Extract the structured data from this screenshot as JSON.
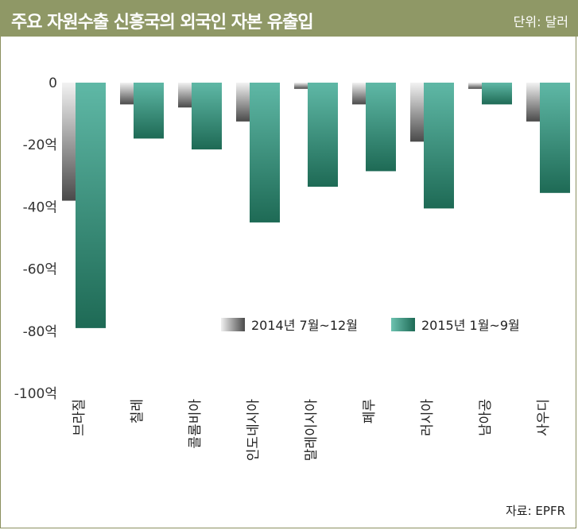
{
  "header": {
    "title": "주요 자원수출 신흥국의 외국인 자본 유출입",
    "unit": "단위: 달러"
  },
  "source": "자료: EPFR",
  "chart_data": {
    "type": "bar",
    "title": "주요 자원수출 신흥국의 외국인 자본 유출입",
    "xlabel": "",
    "ylabel": "",
    "ylim": [
      -100,
      0
    ],
    "yticks": [
      0,
      -20,
      -40,
      -60,
      -80,
      -100
    ],
    "ytick_labels": [
      "0",
      "-20억",
      "-40억",
      "-60억",
      "-80억",
      "-100억"
    ],
    "categories": [
      "브라질",
      "칠레",
      "콜롬비아",
      "인도네시아",
      "말레이시아",
      "페루",
      "러시아",
      "남아공",
      "사우디"
    ],
    "series": [
      {
        "name": "2014년 7월~12월",
        "values": [
          -38,
          -7,
          -8,
          -12.5,
          -2,
          -7,
          -19,
          -2,
          -12.5
        ],
        "color": "#5a5a5a"
      },
      {
        "name": "2015년 1월~9월",
        "values": [
          -79,
          -18,
          -21.5,
          -45,
          -33.5,
          -28.5,
          -40.5,
          -7,
          -35.5
        ],
        "color": "#2e8b72"
      }
    ],
    "legend_position": "lower-right",
    "grid": false
  }
}
